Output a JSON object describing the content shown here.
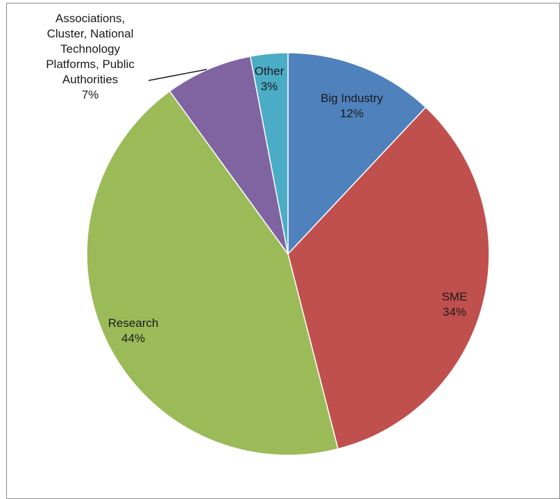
{
  "chart_data": {
    "type": "pie",
    "title": "",
    "slices": [
      {
        "name": "Big Industry",
        "value": 12,
        "label": "12%",
        "color": "#4f81bd"
      },
      {
        "name": "SME",
        "value": 34,
        "label": "34%",
        "color": "#c0504d"
      },
      {
        "name": "Research",
        "value": 44,
        "label": "44%",
        "color": "#9bbb59"
      },
      {
        "name": "Associations, Cluster, National Technology Platforms, Public Authorities",
        "value": 7,
        "label": "7%",
        "color": "#8064a2"
      },
      {
        "name": "Other",
        "value": 3,
        "label": "3%",
        "color": "#4bacc6"
      }
    ]
  }
}
